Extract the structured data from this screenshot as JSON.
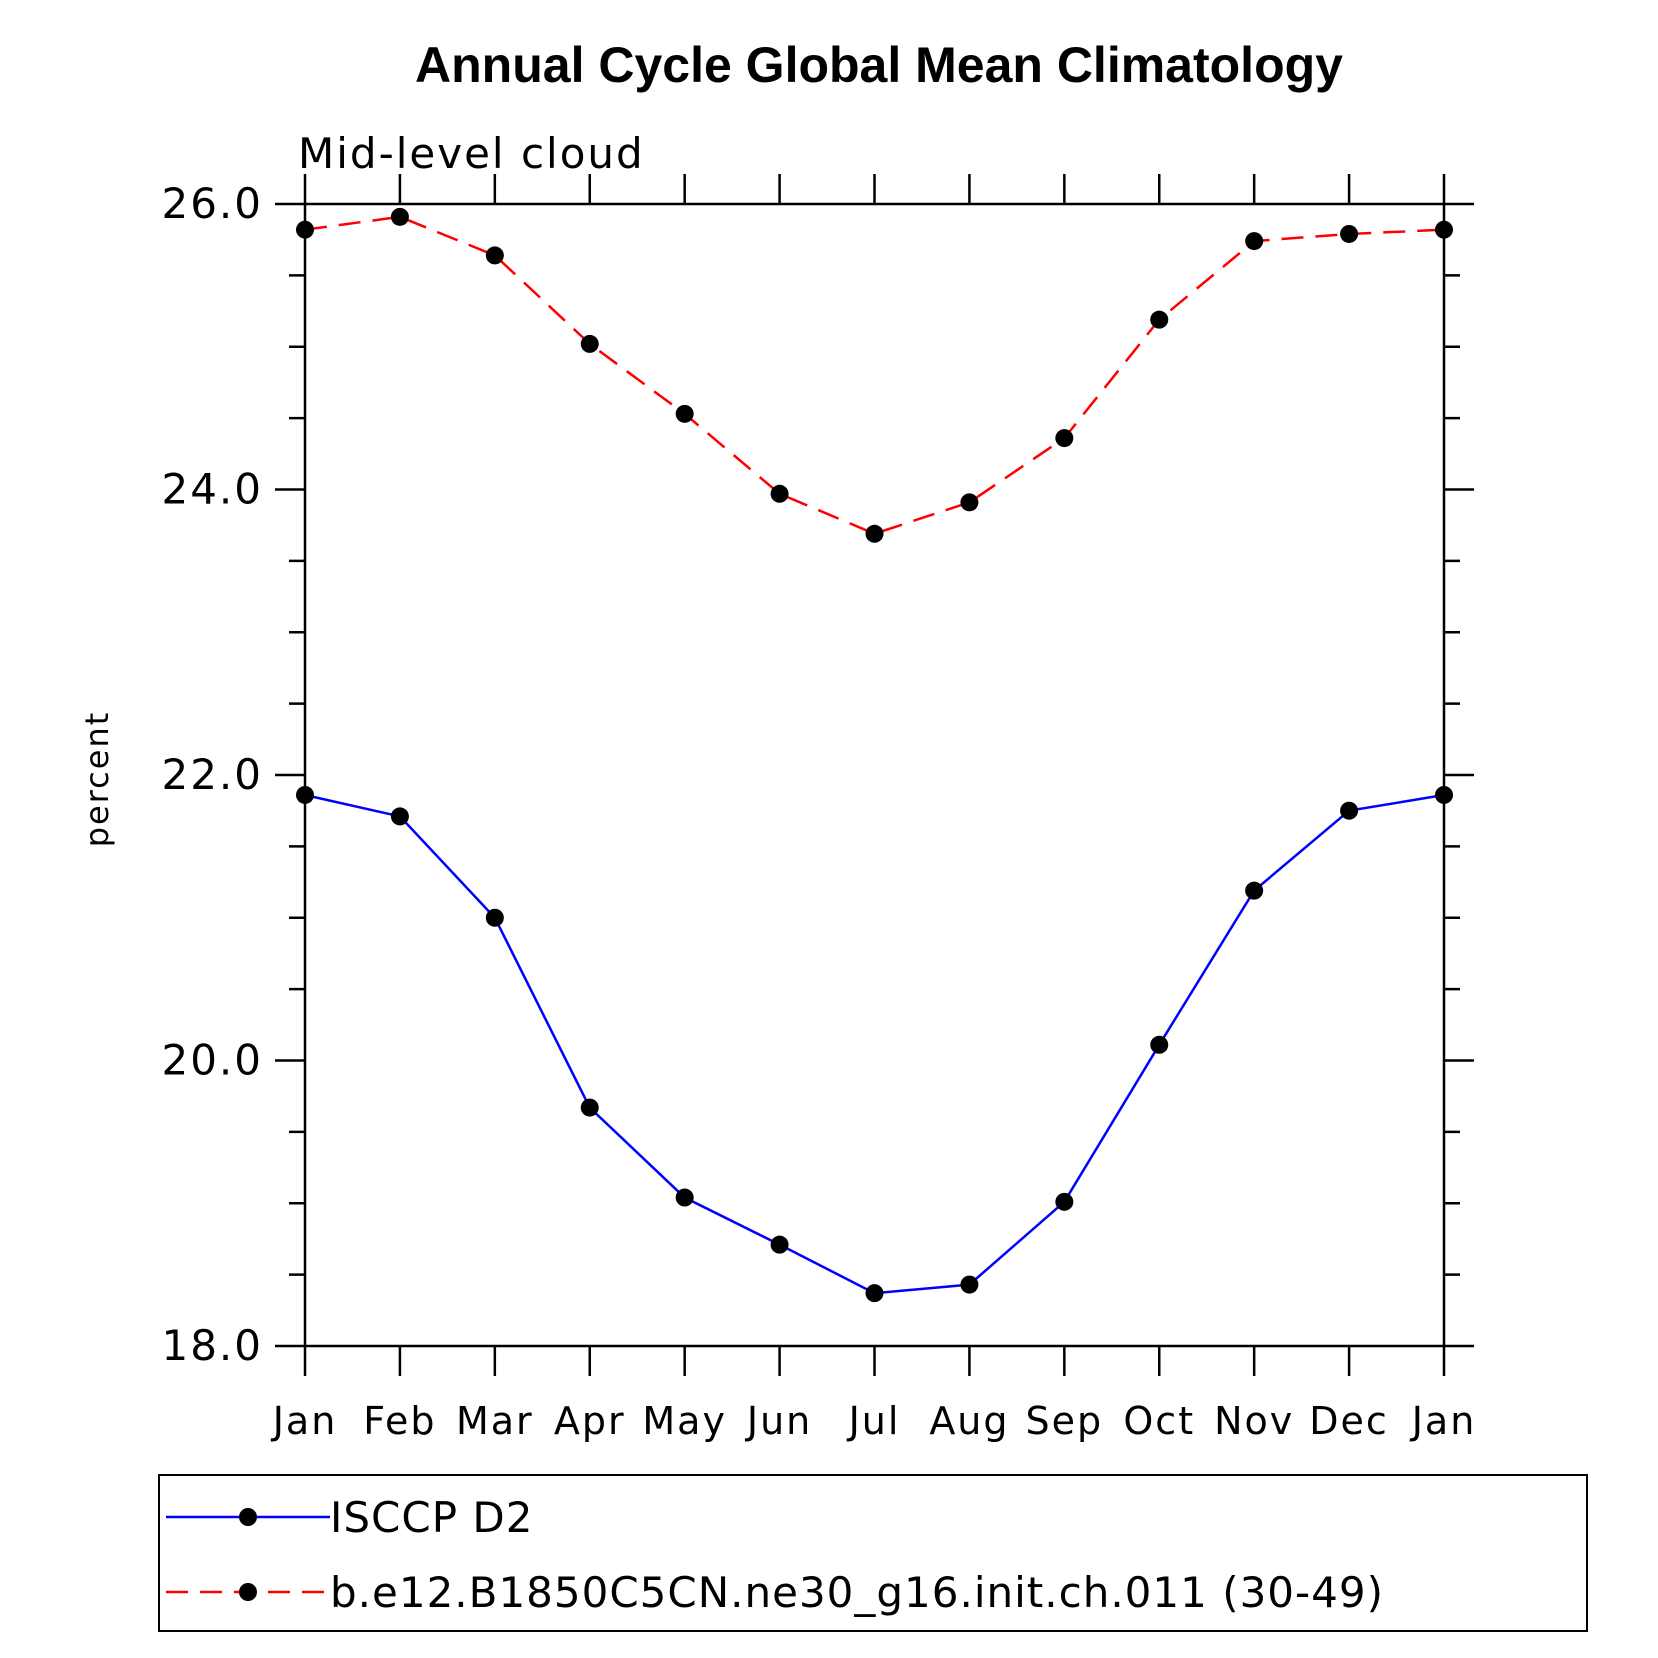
{
  "chart_data": {
    "type": "line",
    "title": "Annual Cycle Global Mean Climatology",
    "subtitle": "Mid-level cloud",
    "xlabel": "",
    "ylabel": "percent",
    "ylim": [
      18.0,
      26.0
    ],
    "yticks": [
      "18.0",
      "20.0",
      "22.0",
      "24.0",
      "26.0"
    ],
    "ytick_values": [
      18,
      20,
      22,
      24,
      26
    ],
    "categories": [
      "Jan",
      "Feb",
      "Mar",
      "Apr",
      "May",
      "Jun",
      "Jul",
      "Aug",
      "Sep",
      "Oct",
      "Nov",
      "Dec",
      "Jan"
    ],
    "series": [
      {
        "name": "ISCCP D2",
        "color": "#0000ff",
        "dash": "solid",
        "values": [
          21.86,
          21.71,
          21.0,
          19.67,
          19.04,
          18.71,
          18.37,
          18.43,
          19.01,
          20.11,
          21.19,
          21.75,
          21.86
        ]
      },
      {
        "name": "b.e12.B1850C5CN.ne30_g16.init.ch.011 (30-49)",
        "color": "#ff0000",
        "dash": "dashed",
        "values": [
          25.82,
          25.91,
          25.64,
          25.02,
          24.53,
          23.97,
          23.69,
          23.91,
          24.36,
          25.19,
          25.74,
          25.79,
          25.82
        ]
      }
    ],
    "legend_position": "bottom"
  }
}
